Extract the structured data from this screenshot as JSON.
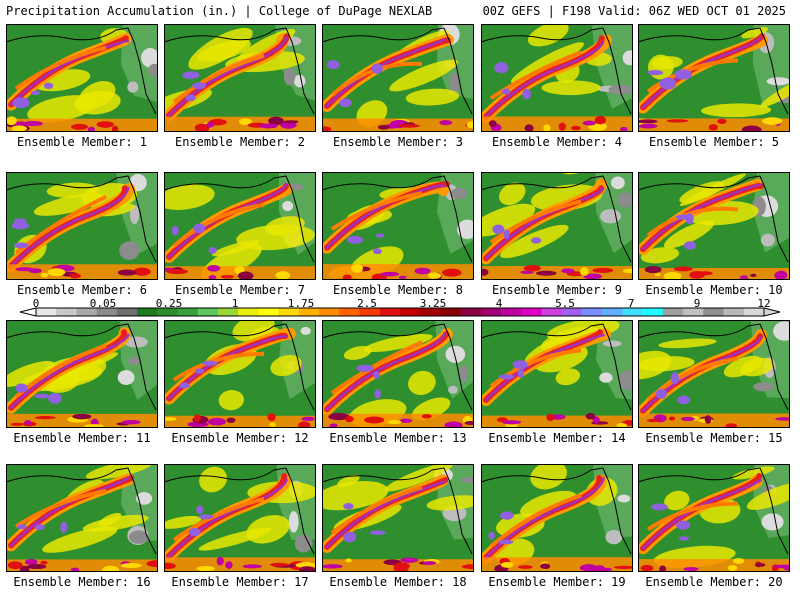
{
  "header": {
    "left": "Precipitation Accumulation (in.) | College of DuPage NEXLAB",
    "right": "00Z GEFS | F198 Valid: 06Z WED OCT 01 2025"
  },
  "panels": [
    {
      "label": "Ensemble Member: 1"
    },
    {
      "label": "Ensemble Member: 2"
    },
    {
      "label": "Ensemble Member: 3"
    },
    {
      "label": "Ensemble Member: 4"
    },
    {
      "label": "Ensemble Member: 5"
    },
    {
      "label": "Ensemble Member: 6"
    },
    {
      "label": "Ensemble Member: 7"
    },
    {
      "label": "Ensemble Member: 8"
    },
    {
      "label": "Ensemble Member: 9"
    },
    {
      "label": "Ensemble Member: 10"
    },
    {
      "label": "Ensemble Member: 11"
    },
    {
      "label": "Ensemble Member: 12"
    },
    {
      "label": "Ensemble Member: 13"
    },
    {
      "label": "Ensemble Member: 14"
    },
    {
      "label": "Ensemble Member: 15"
    },
    {
      "label": "Ensemble Member: 16"
    },
    {
      "label": "Ensemble Member: 17"
    },
    {
      "label": "Ensemble Member: 18"
    },
    {
      "label": "Ensemble Member: 19"
    },
    {
      "label": "Ensemble Member: 20"
    }
  ],
  "colorbar": {
    "labels": [
      "0",
      "0.05",
      "0.25",
      "1",
      "1.75",
      "2.5",
      "3.25",
      "4",
      "5.5",
      "7",
      "9",
      "12"
    ],
    "colors": [
      "#e6e6e6",
      "#c8c8c8",
      "#aaaaaa",
      "#8c8c8c",
      "#6e6e6e",
      "#1f7a1f",
      "#2e8b2e",
      "#3ca03c",
      "#5cc85c",
      "#9ad83a",
      "#e8f000",
      "#ffff00",
      "#ffd800",
      "#ffb000",
      "#ff8c00",
      "#ff6400",
      "#f03c00",
      "#e01010",
      "#c00000",
      "#a00000",
      "#880000",
      "#8b0040",
      "#a00070",
      "#c000a0",
      "#e000c8",
      "#d040e0",
      "#a060f0",
      "#7890ff",
      "#60b0ff",
      "#40e0ff",
      "#20ffff",
      "#a0a0a0",
      "#c0c0c0",
      "#909090",
      "#b8b8b8",
      "#d8d8d8"
    ]
  }
}
